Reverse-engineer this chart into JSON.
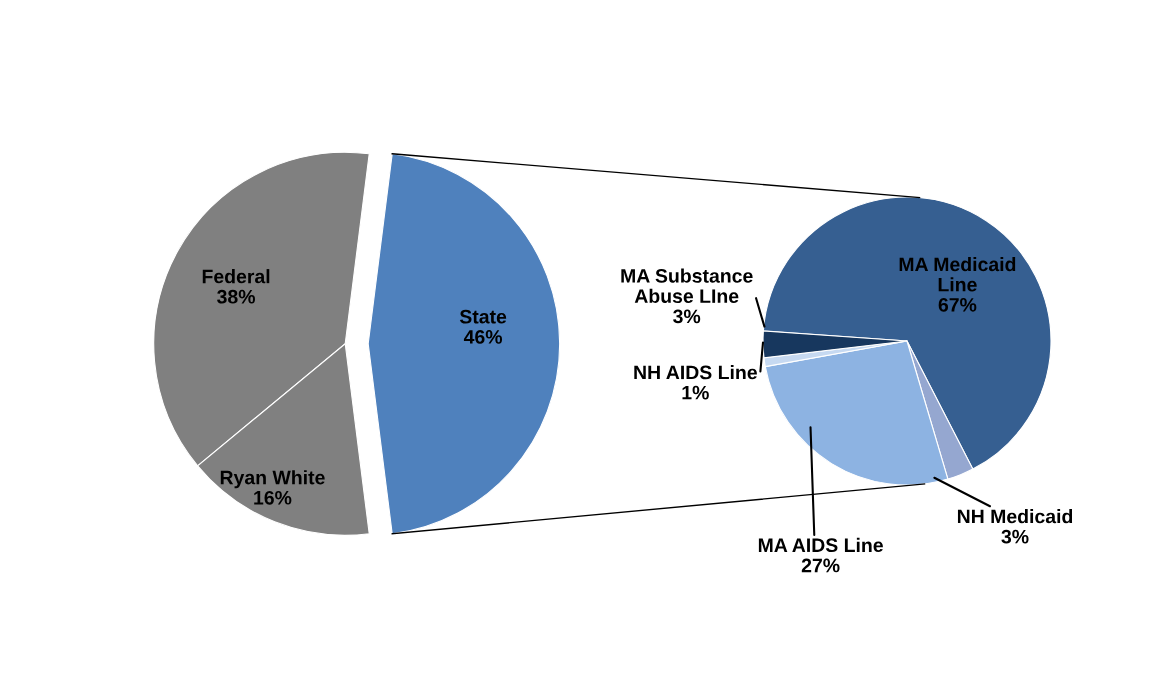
{
  "chart_data": [
    {
      "type": "pie",
      "categories": [
        "State",
        "Federal",
        "Ryan White"
      ],
      "values": [
        46,
        38,
        16
      ],
      "value_labels": [
        "46%",
        "38%",
        "16%"
      ],
      "colors": [
        "#4f81bd",
        "#808080",
        "#808080"
      ],
      "legend": false
    },
    {
      "type": "pie",
      "categories": [
        "MA Medicaid\nLine",
        "NH Medicaid",
        "MA AIDS Line",
        "NH AIDS Line",
        "MA Substance\nAbuse LIne"
      ],
      "values": [
        67,
        3,
        27,
        1,
        3
      ],
      "value_labels": [
        "67%",
        "3%",
        "27%",
        "1%",
        "3%"
      ],
      "colors": [
        "#365f91",
        "#95a7d0",
        "#8db3e2",
        "#c6d9f1",
        "#17375e"
      ],
      "legend": false
    }
  ]
}
